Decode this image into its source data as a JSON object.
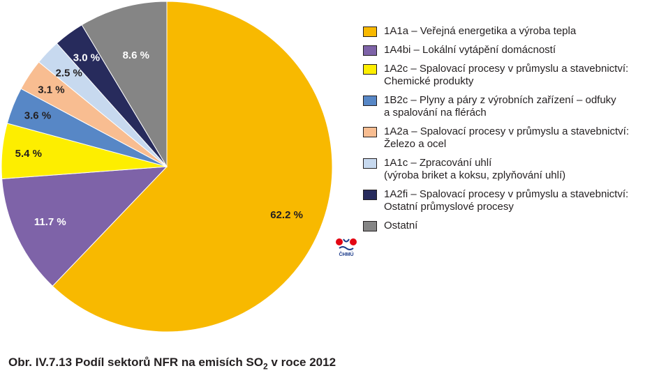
{
  "chart_data": {
    "type": "pie",
    "title": "",
    "slices": [
      {
        "label": "1A1a – Veřejná energetika a výroba tepla",
        "value": 62.2,
        "pct_label": "62.2 %",
        "color": "#f8b900",
        "label_color": "#231f20"
      },
      {
        "label": "1A4bi  – Lokální vytápění domácností",
        "value": 11.7,
        "pct_label": "11.7 %",
        "color": "#7e63a8",
        "label_color": "#ffffff"
      },
      {
        "label": "1A2c – Spalovací procesy v průmyslu a stavebnictví:\nChemické produkty",
        "value": 5.4,
        "pct_label": "5.4 %",
        "color": "#fdee00",
        "label_color": "#231f20"
      },
      {
        "label": "1B2c – Plyny a páry z výrobních zařízení – odfuky\na spalování na flérách",
        "value": 3.6,
        "pct_label": "3.6 %",
        "color": "#5787c6",
        "label_color": "#231f20"
      },
      {
        "label": "1A2a – Spalovací procesy v průmyslu a stavebnictví:\nŽelezo a ocel",
        "value": 3.1,
        "pct_label": "3.1 %",
        "color": "#f8bd91",
        "label_color": "#231f20"
      },
      {
        "label": "1A1c – Zpracování uhlí\n(výroba briket a koksu, zplyňování uhlí)",
        "value": 2.5,
        "pct_label": "2.5 %",
        "color": "#c7d9ef",
        "label_color": "#231f20"
      },
      {
        "label": "1A2fi – Spalovací procesy v průmyslu a stavebnictví:\nOstatní průmyslové procesy",
        "value": 3.0,
        "pct_label": "3.0 %",
        "color": "#272b5c",
        "label_color": "#ffffff"
      },
      {
        "label": "Ostatní",
        "value": 8.6,
        "pct_label": "8.6 %",
        "color": "#858585",
        "label_color": "#ffffff"
      }
    ],
    "legend_placement": "right"
  },
  "logo": {
    "text": "ČHMÚ"
  },
  "caption": {
    "prefix": "Obr. IV.7.13  Podíl sektorů NFR na emisích SO",
    "subscript": "2",
    "suffix": " v roce 2012"
  }
}
